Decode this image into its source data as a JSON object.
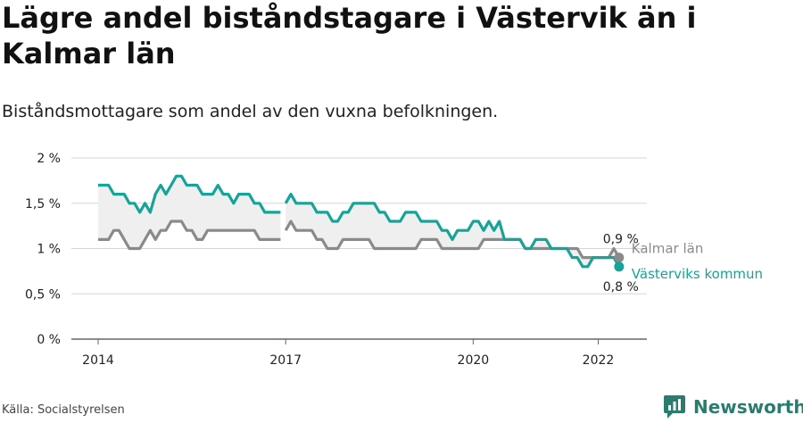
{
  "title": "Lägre andel biståndstagare i Västervik än i Kalmar län",
  "subtitle": "Biståndsmottagare som andel av den vuxna befolkningen.",
  "source": "Källa: Socialstyrelsen",
  "brand": {
    "name": "Newsworthy",
    "icon": "newsworthy-logo-icon",
    "color": "#2a7d6e"
  },
  "colors": {
    "vastervik": "#17a398",
    "kalmar": "#8a8a8a",
    "band": "#efefef"
  },
  "chart_data": {
    "type": "line",
    "ylim": [
      0,
      2
    ],
    "xlim": [
      2014.0,
      2023.0
    ],
    "y_ticks": [
      {
        "value": 0,
        "label": "0 %"
      },
      {
        "value": 0.5,
        "label": "0,5 %"
      },
      {
        "value": 1,
        "label": "1 %"
      },
      {
        "value": 1.5,
        "label": "1,5 %"
      },
      {
        "value": 2,
        "label": "2 %"
      }
    ],
    "x_ticks": [
      {
        "value": 2014,
        "label": "2014"
      },
      {
        "value": 2017,
        "label": "2017"
      },
      {
        "value": 2020,
        "label": "2020"
      },
      {
        "value": 2022,
        "label": "2022"
      }
    ],
    "grid": true,
    "series": [
      {
        "name": "Kalmar län",
        "end_label": "0,9 %",
        "segments": [
          {
            "x": [
              2014.0,
              2014.083,
              2014.167,
              2014.25,
              2014.333,
              2014.417,
              2014.5,
              2014.583,
              2014.667,
              2014.75,
              2014.833,
              2014.917,
              2015.0,
              2015.083,
              2015.167,
              2015.25,
              2015.333,
              2015.417,
              2015.5,
              2015.583,
              2015.667,
              2015.75,
              2015.833,
              2015.917,
              2016.0,
              2016.083,
              2016.167,
              2016.25,
              2016.333,
              2016.417,
              2016.5,
              2016.583,
              2016.667,
              2016.75,
              2016.833,
              2016.917
            ],
            "y": [
              1.1,
              1.1,
              1.1,
              1.2,
              1.2,
              1.1,
              1.0,
              1.0,
              1.0,
              1.1,
              1.2,
              1.1,
              1.2,
              1.2,
              1.3,
              1.3,
              1.3,
              1.2,
              1.2,
              1.1,
              1.1,
              1.2,
              1.2,
              1.2,
              1.2,
              1.2,
              1.2,
              1.2,
              1.2,
              1.2,
              1.2,
              1.1,
              1.1,
              1.1,
              1.1,
              1.1
            ]
          },
          {
            "x": [
              2017.0,
              2017.083,
              2017.167,
              2017.25,
              2017.333,
              2017.417,
              2017.5,
              2017.583,
              2017.667,
              2017.75,
              2017.833,
              2017.917,
              2018.0,
              2018.083,
              2018.167,
              2018.25,
              2018.333,
              2018.417,
              2018.5,
              2018.583,
              2018.667,
              2018.75,
              2018.833,
              2018.917,
              2019.0,
              2019.083,
              2019.167,
              2019.25,
              2019.333,
              2019.417,
              2019.5,
              2019.583,
              2019.667,
              2019.75,
              2019.833,
              2019.917,
              2020.0,
              2020.083,
              2020.167,
              2020.25,
              2020.333,
              2020.417,
              2020.5,
              2020.583,
              2020.667,
              2020.75,
              2020.833,
              2020.917,
              2021.0,
              2021.083,
              2021.167,
              2021.25,
              2021.333,
              2021.417,
              2021.5,
              2021.583,
              2021.667,
              2021.75,
              2021.833,
              2021.917,
              2022.0,
              2022.083,
              2022.167,
              2022.25,
              2022.333
            ],
            "y": [
              1.2,
              1.3,
              1.2,
              1.2,
              1.2,
              1.2,
              1.1,
              1.1,
              1.0,
              1.0,
              1.0,
              1.1,
              1.1,
              1.1,
              1.1,
              1.1,
              1.1,
              1.0,
              1.0,
              1.0,
              1.0,
              1.0,
              1.0,
              1.0,
              1.0,
              1.0,
              1.1,
              1.1,
              1.1,
              1.1,
              1.0,
              1.0,
              1.0,
              1.0,
              1.0,
              1.0,
              1.0,
              1.0,
              1.1,
              1.1,
              1.1,
              1.1,
              1.1,
              1.1,
              1.1,
              1.1,
              1.0,
              1.0,
              1.0,
              1.0,
              1.0,
              1.0,
              1.0,
              1.0,
              1.0,
              1.0,
              1.0,
              0.9,
              0.9,
              0.9,
              0.9,
              0.9,
              0.9,
              1.0,
              0.9
            ]
          }
        ]
      },
      {
        "name": "Västerviks kommun",
        "end_label": "0,8 %",
        "segments": [
          {
            "x": [
              2014.0,
              2014.083,
              2014.167,
              2014.25,
              2014.333,
              2014.417,
              2014.5,
              2014.583,
              2014.667,
              2014.75,
              2014.833,
              2014.917,
              2015.0,
              2015.083,
              2015.167,
              2015.25,
              2015.333,
              2015.417,
              2015.5,
              2015.583,
              2015.667,
              2015.75,
              2015.833,
              2015.917,
              2016.0,
              2016.083,
              2016.167,
              2016.25,
              2016.333,
              2016.417,
              2016.5,
              2016.583,
              2016.667,
              2016.75,
              2016.833,
              2016.917
            ],
            "y": [
              1.7,
              1.7,
              1.7,
              1.6,
              1.6,
              1.6,
              1.5,
              1.5,
              1.4,
              1.5,
              1.4,
              1.6,
              1.7,
              1.6,
              1.7,
              1.8,
              1.8,
              1.7,
              1.7,
              1.7,
              1.6,
              1.6,
              1.6,
              1.7,
              1.6,
              1.6,
              1.5,
              1.6,
              1.6,
              1.6,
              1.5,
              1.5,
              1.4,
              1.4,
              1.4,
              1.4
            ]
          },
          {
            "x": [
              2017.0,
              2017.083,
              2017.167,
              2017.25,
              2017.333,
              2017.417,
              2017.5,
              2017.583,
              2017.667,
              2017.75,
              2017.833,
              2017.917,
              2018.0,
              2018.083,
              2018.167,
              2018.25,
              2018.333,
              2018.417,
              2018.5,
              2018.583,
              2018.667,
              2018.75,
              2018.833,
              2018.917,
              2019.0,
              2019.083,
              2019.167,
              2019.25,
              2019.333,
              2019.417,
              2019.5,
              2019.583,
              2019.667,
              2019.75,
              2019.833,
              2019.917,
              2020.0,
              2020.083,
              2020.167,
              2020.25,
              2020.333,
              2020.417,
              2020.5,
              2020.583,
              2020.667,
              2020.75,
              2020.833,
              2020.917,
              2021.0,
              2021.083,
              2021.167,
              2021.25,
              2021.333,
              2021.417,
              2021.5,
              2021.583,
              2021.667,
              2021.75,
              2021.833,
              2021.917,
              2022.0,
              2022.083,
              2022.167,
              2022.25,
              2022.333
            ],
            "y": [
              1.5,
              1.6,
              1.5,
              1.5,
              1.5,
              1.5,
              1.4,
              1.4,
              1.4,
              1.3,
              1.3,
              1.4,
              1.4,
              1.5,
              1.5,
              1.5,
              1.5,
              1.5,
              1.4,
              1.4,
              1.3,
              1.3,
              1.3,
              1.4,
              1.4,
              1.4,
              1.3,
              1.3,
              1.3,
              1.3,
              1.2,
              1.2,
              1.1,
              1.2,
              1.2,
              1.2,
              1.3,
              1.3,
              1.2,
              1.3,
              1.2,
              1.3,
              1.1,
              1.1,
              1.1,
              1.1,
              1.0,
              1.0,
              1.1,
              1.1,
              1.1,
              1.0,
              1.0,
              1.0,
              1.0,
              0.9,
              0.9,
              0.8,
              0.8,
              0.9,
              0.9,
              0.9,
              0.9,
              0.9,
              0.8
            ]
          }
        ]
      }
    ]
  }
}
